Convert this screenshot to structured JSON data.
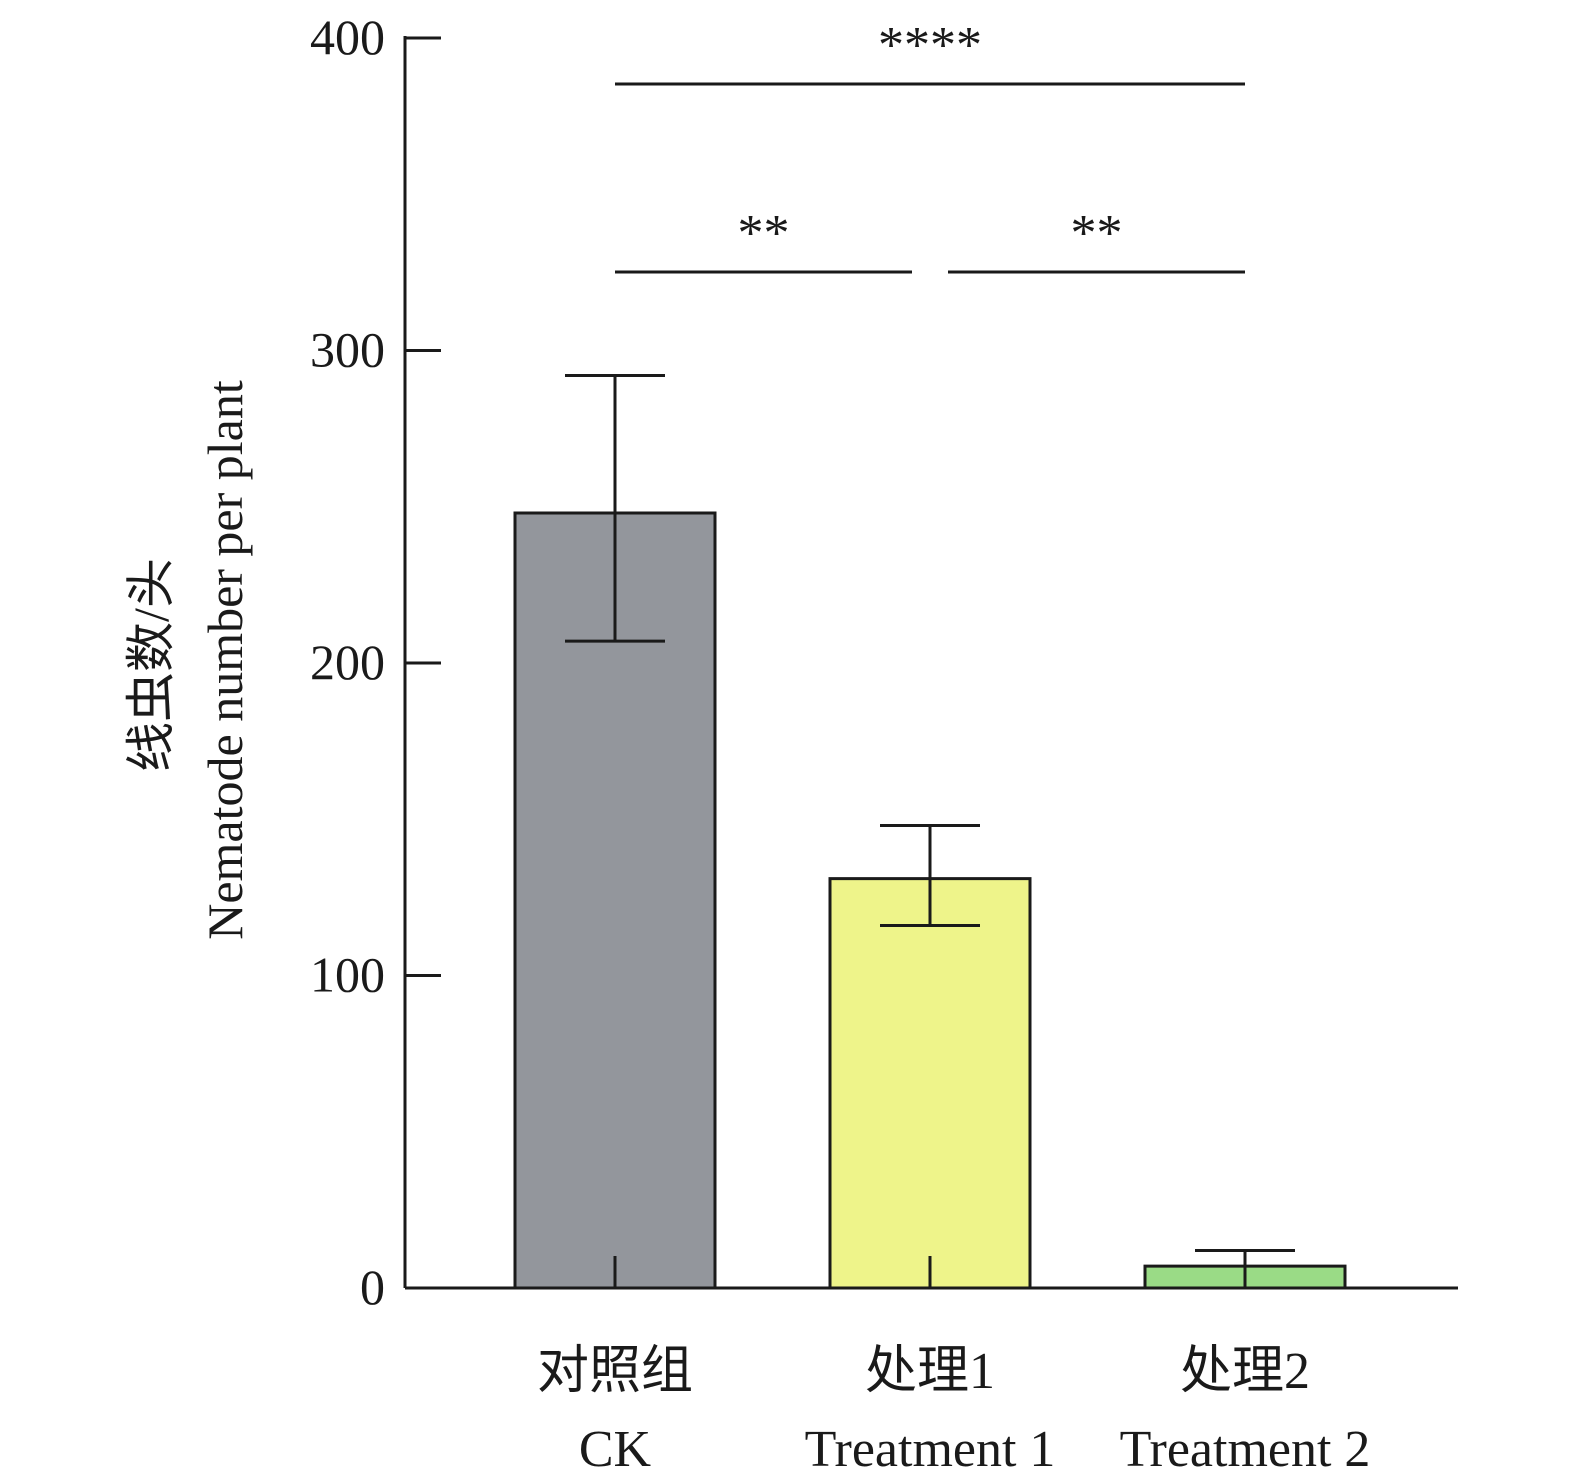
{
  "chart_data": {
    "type": "bar",
    "categories": [
      {
        "cn": "对照组",
        "en": "CK"
      },
      {
        "cn": "处理1",
        "en": "Treatment 1"
      },
      {
        "cn": "处理2",
        "en": "Treatment 2"
      }
    ],
    "values": [
      248,
      131,
      7
    ],
    "error_high": [
      292,
      148,
      12
    ],
    "error_low": [
      207,
      116,
      7
    ],
    "colors": [
      "#93969c",
      "#eef48a",
      "#9adb86"
    ],
    "ylabel_cn": "线虫数/头",
    "ylabel_en": "Nematode number per plant",
    "ylim": [
      0,
      400
    ],
    "yticks": [
      "0",
      "100",
      "200",
      "300",
      "400"
    ],
    "significance": [
      {
        "from": 0,
        "to": 2,
        "label": "****",
        "level": 0
      },
      {
        "from": 0,
        "to": 1,
        "label": "**",
        "level": 1
      },
      {
        "from": 1,
        "to": 2,
        "label": "**",
        "level": 1
      }
    ],
    "grid": false,
    "legend": "none"
  }
}
